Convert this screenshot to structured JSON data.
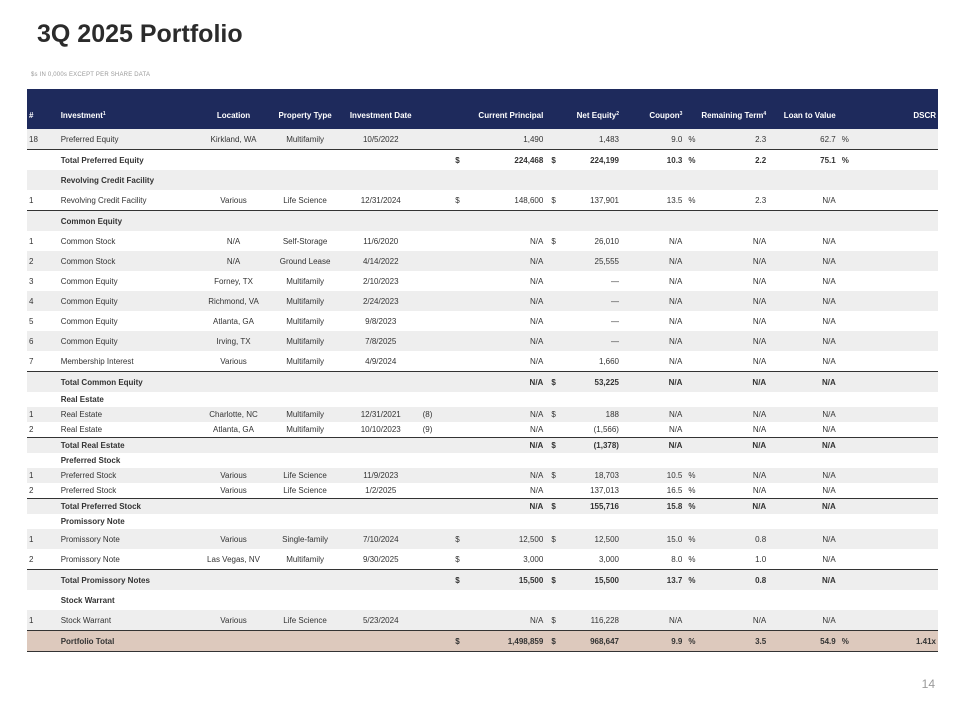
{
  "title": "3Q 2025 Portfolio",
  "subtitle": "$s IN 0,000s EXCEPT PER SHARE DATA",
  "page_number": "14",
  "columns": {
    "num": "#",
    "investment": "Investment",
    "investment_sup": "1",
    "location": "Location",
    "property_type": "Property Type",
    "investment_date": "Investment Date",
    "current_principal": "Current Principal",
    "net_equity": "Net Equity",
    "net_equity_sup": "2",
    "coupon": "Coupon",
    "coupon_sup": "3",
    "remaining_term": "Remaining Term",
    "remaining_term_sup": "4",
    "ltv": "Loan to Value",
    "dscr": "DSCR"
  },
  "rows": [
    {
      "kind": "data",
      "shade": true,
      "num": "18",
      "investment": "Preferred Equity",
      "location": "Kirkland, WA",
      "property_type": "Multifamily",
      "date": "10/5/2022",
      "note": "",
      "cp_dollar": "",
      "principal": "1,490",
      "ne_dollar": "",
      "net_equity": "1,483",
      "coupon": "9.0",
      "coupon_pct": "%",
      "term": "2.3",
      "ltv": "62.7",
      "ltv_pct": "%",
      "dscr": ""
    },
    {
      "kind": "total",
      "shade": false,
      "num": "",
      "investment": "Total Preferred Equity",
      "location": "",
      "property_type": "",
      "date": "",
      "note": "",
      "cp_dollar": "$",
      "principal": "224,468",
      "ne_dollar": "$",
      "net_equity": "224,199",
      "coupon": "10.3",
      "coupon_pct": "%",
      "term": "2.2",
      "ltv": "75.1",
      "ltv_pct": "%",
      "dscr": ""
    },
    {
      "kind": "header",
      "shade": true,
      "num": "",
      "investment": "Revolving Credit Facility",
      "location": "",
      "property_type": "",
      "date": "",
      "note": "",
      "cp_dollar": "",
      "principal": "",
      "ne_dollar": "",
      "net_equity": "",
      "coupon": "",
      "coupon_pct": "",
      "term": "",
      "ltv": "",
      "ltv_pct": "",
      "dscr": ""
    },
    {
      "kind": "data",
      "shade": false,
      "num": "1",
      "investment": "Revolving Credit Facility",
      "location": "Various",
      "property_type": "Life Science",
      "date": "12/31/2024",
      "note": "",
      "cp_dollar": "$",
      "principal": "148,600",
      "ne_dollar": "$",
      "net_equity": "137,901",
      "coupon": "13.5",
      "coupon_pct": "%",
      "term": "2.3",
      "ltv": "N/A",
      "ltv_pct": "",
      "dscr": ""
    },
    {
      "kind": "header-line",
      "shade": true,
      "num": "",
      "investment": "Common Equity",
      "location": "",
      "property_type": "",
      "date": "",
      "note": "",
      "cp_dollar": "",
      "principal": "",
      "ne_dollar": "",
      "net_equity": "",
      "coupon": "",
      "coupon_pct": "",
      "term": "",
      "ltv": "",
      "ltv_pct": "",
      "dscr": ""
    },
    {
      "kind": "data",
      "shade": false,
      "num": "1",
      "investment": "Common Stock",
      "location": "N/A",
      "property_type": "Self-Storage",
      "date": "11/6/2020",
      "note": "",
      "cp_dollar": "",
      "principal": "N/A",
      "ne_dollar": "$",
      "net_equity": "26,010",
      "coupon": "N/A",
      "coupon_pct": "",
      "term": "N/A",
      "ltv": "N/A",
      "ltv_pct": "",
      "dscr": ""
    },
    {
      "kind": "data",
      "shade": true,
      "num": "2",
      "investment": "Common Stock",
      "location": "N/A",
      "property_type": "Ground Lease",
      "date": "4/14/2022",
      "note": "",
      "cp_dollar": "",
      "principal": "N/A",
      "ne_dollar": "",
      "net_equity": "25,555",
      "coupon": "N/A",
      "coupon_pct": "",
      "term": "N/A",
      "ltv": "N/A",
      "ltv_pct": "",
      "dscr": ""
    },
    {
      "kind": "data",
      "shade": false,
      "num": "3",
      "investment": "Common Equity",
      "location": "Forney, TX",
      "property_type": "Multifamily",
      "date": "2/10/2023",
      "note": "",
      "cp_dollar": "",
      "principal": "N/A",
      "ne_dollar": "",
      "net_equity": "—",
      "coupon": "N/A",
      "coupon_pct": "",
      "term": "N/A",
      "ltv": "N/A",
      "ltv_pct": "",
      "dscr": ""
    },
    {
      "kind": "data",
      "shade": true,
      "num": "4",
      "investment": "Common Equity",
      "location": "Richmond, VA",
      "property_type": "Multifamily",
      "date": "2/24/2023",
      "note": "",
      "cp_dollar": "",
      "principal": "N/A",
      "ne_dollar": "",
      "net_equity": "—",
      "coupon": "N/A",
      "coupon_pct": "",
      "term": "N/A",
      "ltv": "N/A",
      "ltv_pct": "",
      "dscr": ""
    },
    {
      "kind": "data",
      "shade": false,
      "num": "5",
      "investment": "Common Equity",
      "location": "Atlanta, GA",
      "property_type": "Multifamily",
      "date": "9/8/2023",
      "note": "",
      "cp_dollar": "",
      "principal": "N/A",
      "ne_dollar": "",
      "net_equity": "—",
      "coupon": "N/A",
      "coupon_pct": "",
      "term": "N/A",
      "ltv": "N/A",
      "ltv_pct": "",
      "dscr": ""
    },
    {
      "kind": "data",
      "shade": true,
      "num": "6",
      "investment": "Common Equity",
      "location": "Irving, TX",
      "property_type": "Multifamily",
      "date": "7/8/2025",
      "note": "",
      "cp_dollar": "",
      "principal": "N/A",
      "ne_dollar": "",
      "net_equity": "—",
      "coupon": "N/A",
      "coupon_pct": "",
      "term": "N/A",
      "ltv": "N/A",
      "ltv_pct": "",
      "dscr": ""
    },
    {
      "kind": "data",
      "shade": false,
      "num": "7",
      "investment": "Membership Interest",
      "location": "Various",
      "property_type": "Multifamily",
      "date": "4/9/2024",
      "note": "",
      "cp_dollar": "",
      "principal": "N/A",
      "ne_dollar": "",
      "net_equity": "1,660",
      "coupon": "N/A",
      "coupon_pct": "",
      "term": "N/A",
      "ltv": "N/A",
      "ltv_pct": "",
      "dscr": ""
    },
    {
      "kind": "total",
      "shade": true,
      "num": "",
      "investment": "Total Common Equity",
      "location": "",
      "property_type": "",
      "date": "",
      "note": "",
      "cp_dollar": "",
      "principal": "N/A",
      "ne_dollar": "$",
      "net_equity": "53,225",
      "coupon": "N/A",
      "coupon_pct": "",
      "term": "N/A",
      "ltv": "N/A",
      "ltv_pct": "",
      "dscr": ""
    },
    {
      "kind": "header-compact",
      "shade": false,
      "num": "",
      "investment": "Real Estate",
      "location": "",
      "property_type": "",
      "date": "",
      "note": "",
      "cp_dollar": "",
      "principal": "",
      "ne_dollar": "",
      "net_equity": "",
      "coupon": "",
      "coupon_pct": "",
      "term": "",
      "ltv": "",
      "ltv_pct": "",
      "dscr": ""
    },
    {
      "kind": "data-compact",
      "shade": true,
      "num": "1",
      "investment": "Real Estate",
      "location": "Charlotte, NC",
      "property_type": "Multifamily",
      "date": "12/31/2021",
      "note": "(8)",
      "cp_dollar": "",
      "principal": "N/A",
      "ne_dollar": "$",
      "net_equity": "188",
      "coupon": "N/A",
      "coupon_pct": "",
      "term": "N/A",
      "ltv": "N/A",
      "ltv_pct": "",
      "dscr": ""
    },
    {
      "kind": "data-compact",
      "shade": false,
      "num": "2",
      "investment": "Real Estate",
      "location": "Atlanta, GA",
      "property_type": "Multifamily",
      "date": "10/10/2023",
      "note": "(9)",
      "cp_dollar": "",
      "principal": "N/A",
      "ne_dollar": "",
      "net_equity": "(1,566)",
      "coupon": "N/A",
      "coupon_pct": "",
      "term": "N/A",
      "ltv": "N/A",
      "ltv_pct": "",
      "dscr": ""
    },
    {
      "kind": "total-compact",
      "shade": true,
      "num": "",
      "investment": "Total Real Estate",
      "location": "",
      "property_type": "",
      "date": "",
      "note": "",
      "cp_dollar": "",
      "principal": "N/A",
      "ne_dollar": "$",
      "net_equity": "(1,378)",
      "coupon": "N/A",
      "coupon_pct": "",
      "term": "N/A",
      "ltv": "N/A",
      "ltv_pct": "",
      "dscr": ""
    },
    {
      "kind": "header-compact",
      "shade": false,
      "num": "",
      "investment": "Preferred Stock",
      "location": "",
      "property_type": "",
      "date": "",
      "note": "",
      "cp_dollar": "",
      "principal": "",
      "ne_dollar": "",
      "net_equity": "",
      "coupon": "",
      "coupon_pct": "",
      "term": "",
      "ltv": "",
      "ltv_pct": "",
      "dscr": ""
    },
    {
      "kind": "data-compact",
      "shade": true,
      "num": "1",
      "investment": "Preferred Stock",
      "location": "Various",
      "property_type": "Life Science",
      "date": "11/9/2023",
      "note": "",
      "cp_dollar": "",
      "principal": "N/A",
      "ne_dollar": "$",
      "net_equity": "18,703",
      "coupon": "10.5",
      "coupon_pct": "%",
      "term": "N/A",
      "ltv": "N/A",
      "ltv_pct": "",
      "dscr": ""
    },
    {
      "kind": "data-compact",
      "shade": false,
      "num": "2",
      "investment": "Preferred Stock",
      "location": "Various",
      "property_type": "Life Science",
      "date": "1/2/2025",
      "note": "",
      "cp_dollar": "",
      "principal": "N/A",
      "ne_dollar": "",
      "net_equity": "137,013",
      "coupon": "16.5",
      "coupon_pct": "%",
      "term": "N/A",
      "ltv": "N/A",
      "ltv_pct": "",
      "dscr": ""
    },
    {
      "kind": "total-compact",
      "shade": true,
      "num": "",
      "investment": "Total Preferred Stock",
      "location": "",
      "property_type": "",
      "date": "",
      "note": "",
      "cp_dollar": "",
      "principal": "N/A",
      "ne_dollar": "$",
      "net_equity": "155,716",
      "coupon": "15.8",
      "coupon_pct": "%",
      "term": "N/A",
      "ltv": "N/A",
      "ltv_pct": "",
      "dscr": ""
    },
    {
      "kind": "header-compact",
      "shade": false,
      "num": "",
      "investment": "Promissory Note",
      "location": "",
      "property_type": "",
      "date": "",
      "note": "",
      "cp_dollar": "",
      "principal": "",
      "ne_dollar": "",
      "net_equity": "",
      "coupon": "",
      "coupon_pct": "",
      "term": "",
      "ltv": "",
      "ltv_pct": "",
      "dscr": ""
    },
    {
      "kind": "data",
      "shade": true,
      "num": "1",
      "investment": "Promissory Note",
      "location": "Various",
      "property_type": "Single-family",
      "date": "7/10/2024",
      "note": "",
      "cp_dollar": "$",
      "principal": "12,500",
      "ne_dollar": "$",
      "net_equity": "12,500",
      "coupon": "15.0",
      "coupon_pct": "%",
      "term": "0.8",
      "ltv": "N/A",
      "ltv_pct": "",
      "dscr": ""
    },
    {
      "kind": "data",
      "shade": false,
      "num": "2",
      "investment": "Promissory Note",
      "location": "Las Vegas, NV",
      "property_type": "Multifamily",
      "date": "9/30/2025",
      "note": "",
      "cp_dollar": "$",
      "principal": "3,000",
      "ne_dollar": "",
      "net_equity": "3,000",
      "coupon": "8.0",
      "coupon_pct": "%",
      "term": "1.0",
      "ltv": "N/A",
      "ltv_pct": "",
      "dscr": ""
    },
    {
      "kind": "total",
      "shade": true,
      "num": "",
      "investment": "Total Promissory Notes",
      "location": "",
      "property_type": "",
      "date": "",
      "note": "",
      "cp_dollar": "$",
      "principal": "15,500",
      "ne_dollar": "$",
      "net_equity": "15,500",
      "coupon": "13.7",
      "coupon_pct": "%",
      "term": "0.8",
      "ltv": "N/A",
      "ltv_pct": "",
      "dscr": ""
    },
    {
      "kind": "header",
      "shade": false,
      "num": "",
      "investment": "Stock Warrant",
      "location": "",
      "property_type": "",
      "date": "",
      "note": "",
      "cp_dollar": "",
      "principal": "",
      "ne_dollar": "",
      "net_equity": "",
      "coupon": "",
      "coupon_pct": "",
      "term": "",
      "ltv": "",
      "ltv_pct": "",
      "dscr": ""
    },
    {
      "kind": "data",
      "shade": true,
      "num": "1",
      "investment": "Stock Warrant",
      "location": "Various",
      "property_type": "Life Science",
      "date": "5/23/2024",
      "note": "",
      "cp_dollar": "",
      "principal": "N/A",
      "ne_dollar": "$",
      "net_equity": "116,228",
      "coupon": "N/A",
      "coupon_pct": "",
      "term": "N/A",
      "ltv": "N/A",
      "ltv_pct": "",
      "dscr": ""
    },
    {
      "kind": "portfolio",
      "shade": false,
      "num": "",
      "investment": "Portfolio Total",
      "location": "",
      "property_type": "",
      "date": "",
      "note": "",
      "cp_dollar": "$",
      "principal": "1,498,859",
      "ne_dollar": "$",
      "net_equity": "968,647",
      "coupon": "9.9",
      "coupon_pct": "%",
      "term": "3.5",
      "ltv": "54.9",
      "ltv_pct": "%",
      "dscr": "1.41x"
    }
  ]
}
